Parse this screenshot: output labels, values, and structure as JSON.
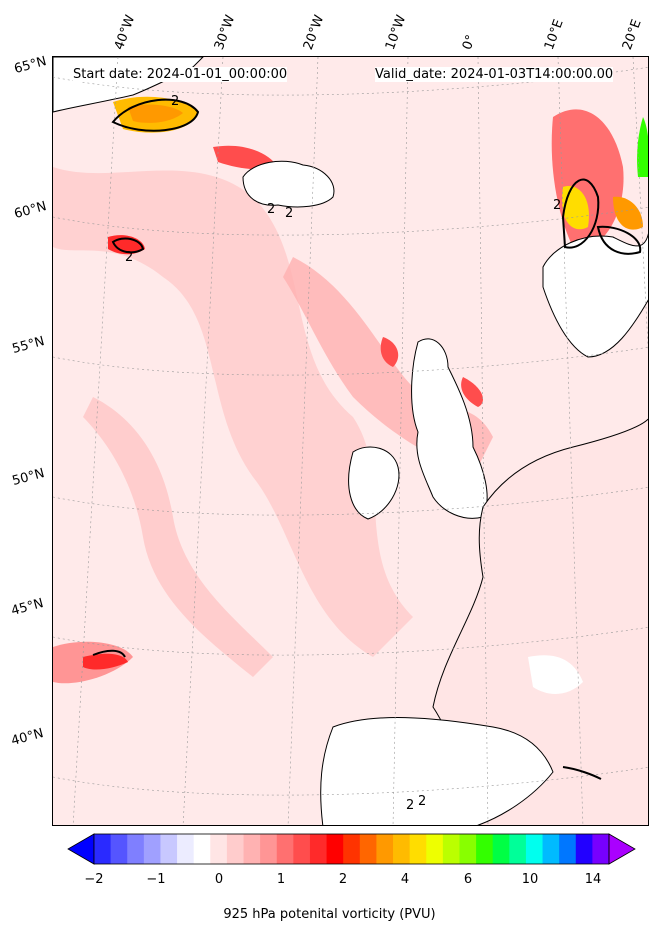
{
  "header": {
    "start_date": "Start date: 2024-01-01_00:00:00",
    "valid_date": "Valid_date: 2024-01-03T14:00:00.00"
  },
  "longitude_labels": [
    "40°W",
    "30°W",
    "20°W",
    "10°W",
    "0°",
    "10°E",
    "20°E"
  ],
  "latitude_labels": [
    "65°N",
    "60°N",
    "55°N",
    "50°N",
    "45°N",
    "40°N"
  ],
  "contour_labels": [
    "2",
    "2",
    "2",
    "2",
    "2",
    "2",
    "2"
  ],
  "colorbar": {
    "label": "925 hPa potenital vorticity (PVU)",
    "ticks": [
      "−2",
      "−1",
      "0",
      "1",
      "2",
      "4",
      "6",
      "10",
      "14"
    ],
    "colors": [
      "#0000ff",
      "#2a2aff",
      "#5555ff",
      "#7f7fff",
      "#a0a0ff",
      "#c8c8ff",
      "#ececff",
      "#ffffff",
      "#ffe5e5",
      "#ffcccc",
      "#ffb2b2",
      "#ff9595",
      "#ff7070",
      "#ff4d4d",
      "#ff2a2a",
      "#ff0000",
      "#ff3300",
      "#ff6600",
      "#ff9900",
      "#ffbb00",
      "#ffdd00",
      "#eeff00",
      "#bbff00",
      "#88ff00",
      "#33ff00",
      "#00ff44",
      "#00ff99",
      "#00ffee",
      "#00bbff",
      "#0077ff",
      "#2200ff",
      "#7700ff",
      "#aa00ff"
    ]
  },
  "colors": {
    "background_pv": "#ffe9e9",
    "land_outline": "#000000",
    "high_pv": "#ff2a2a",
    "negative_pv": "#aab0ff"
  }
}
